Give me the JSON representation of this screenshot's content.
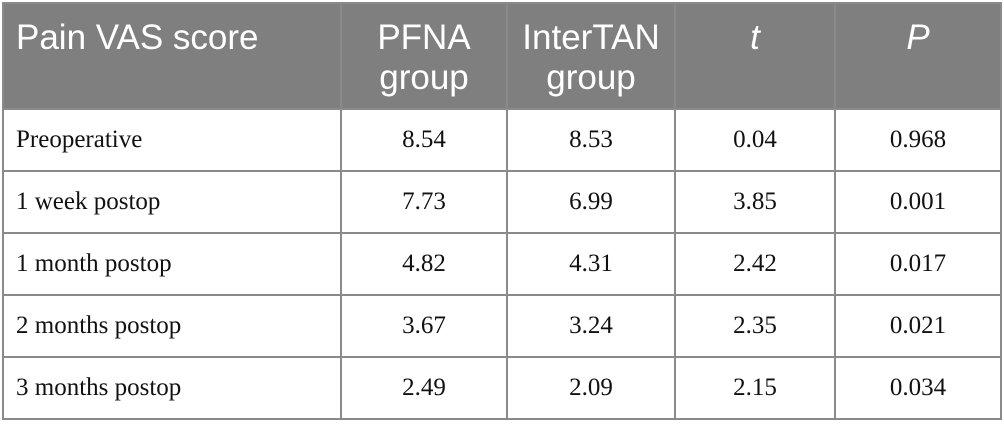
{
  "table": {
    "headers": [
      {
        "lines": [
          "Pain VAS score"
        ]
      },
      {
        "lines": [
          "PFNA",
          "group"
        ]
      },
      {
        "lines": [
          "InterTAN",
          "group"
        ]
      },
      {
        "lines": [
          "t"
        ]
      },
      {
        "lines": [
          "P"
        ]
      }
    ],
    "rows": [
      {
        "label": "Preoperative",
        "pfna": "8.54",
        "intertan": "8.53",
        "t": "0.04",
        "p": "0.968"
      },
      {
        "label": "1 week postop",
        "pfna": "7.73",
        "intertan": "6.99",
        "t": "3.85",
        "p": "0.001"
      },
      {
        "label": "1 month postop",
        "pfna": "4.82",
        "intertan": "4.31",
        "t": "2.42",
        "p": "0.017"
      },
      {
        "label": "2 months postop",
        "pfna": "3.67",
        "intertan": "3.24",
        "t": "2.35",
        "p": "0.021"
      },
      {
        "label": "3 months postop",
        "pfna": "2.49",
        "intertan": "2.09",
        "t": "2.15",
        "p": "0.034"
      }
    ]
  }
}
